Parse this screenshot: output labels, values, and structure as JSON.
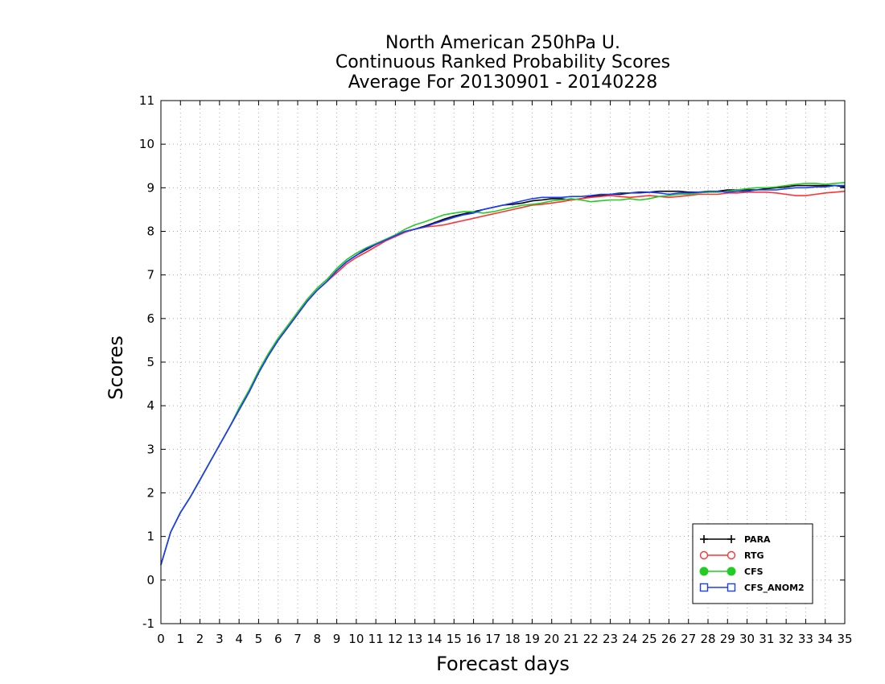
{
  "chart_data": {
    "type": "line",
    "title_lines": [
      "North American 250hPa U.",
      "Continuous Ranked Probability Scores",
      "Average For 20130901 - 20140228"
    ],
    "xlabel": "Forecast days",
    "ylabel": "Scores",
    "xlim": [
      0,
      35
    ],
    "ylim": [
      -1,
      11
    ],
    "xticks": [
      0,
      1,
      2,
      3,
      4,
      5,
      6,
      7,
      8,
      9,
      10,
      11,
      12,
      13,
      14,
      15,
      16,
      17,
      18,
      19,
      20,
      21,
      22,
      23,
      24,
      25,
      26,
      27,
      28,
      29,
      30,
      31,
      32,
      33,
      34,
      35
    ],
    "yticks": [
      -1,
      0,
      1,
      2,
      3,
      4,
      5,
      6,
      7,
      8,
      9,
      10,
      11
    ],
    "grid": true,
    "legend_position": "bottom-right",
    "series": [
      {
        "name": "PARA",
        "color": "#000000",
        "marker": "plus",
        "x": [
          0,
          0.5,
          1,
          1.5,
          2,
          2.5,
          3,
          3.5,
          4,
          4.5,
          5,
          5.5,
          6,
          6.5,
          7,
          7.5,
          8,
          8.5,
          9,
          9.5,
          10,
          10.5,
          11,
          11.5,
          12,
          12.5,
          13,
          13.5,
          14,
          14.5,
          15,
          15.5,
          16,
          16.5,
          17,
          17.5,
          18,
          18.5,
          19,
          19.5,
          20,
          20.5,
          21,
          21.5,
          22,
          22.5,
          23,
          23.5,
          24,
          24.5,
          25,
          25.5,
          26,
          26.5,
          27,
          27.5,
          28,
          28.5,
          29,
          29.5,
          30,
          30.5,
          31,
          31.5,
          32,
          32.5,
          33,
          33.5,
          34,
          34.5,
          35
        ],
        "y": [
          0.35,
          1.1,
          1.55,
          1.9,
          2.3,
          2.7,
          3.1,
          3.5,
          3.9,
          4.3,
          4.75,
          5.15,
          5.5,
          5.8,
          6.1,
          6.4,
          6.65,
          6.85,
          7.1,
          7.3,
          7.45,
          7.58,
          7.7,
          7.8,
          7.9,
          8.0,
          8.05,
          8.12,
          8.2,
          8.28,
          8.35,
          8.4,
          8.45,
          8.5,
          8.55,
          8.6,
          8.62,
          8.65,
          8.7,
          8.72,
          8.75,
          8.75,
          8.72,
          8.75,
          8.8,
          8.82,
          8.85,
          8.85,
          8.88,
          8.9,
          8.9,
          8.92,
          8.92,
          8.92,
          8.9,
          8.9,
          8.9,
          8.92,
          8.95,
          8.95,
          8.95,
          8.95,
          8.98,
          9.0,
          9.02,
          9.05,
          9.05,
          9.05,
          9.05,
          9.05,
          9.02
        ]
      },
      {
        "name": "RTG",
        "color": "#ff3333",
        "marker": "circle-open",
        "x": [
          0,
          0.5,
          1,
          1.5,
          2,
          2.5,
          3,
          3.5,
          4,
          4.5,
          5,
          5.5,
          6,
          6.5,
          7,
          7.5,
          8,
          8.5,
          9,
          9.5,
          10,
          10.5,
          11,
          11.5,
          12,
          12.5,
          13,
          13.5,
          14,
          14.5,
          15,
          15.5,
          16,
          16.5,
          17,
          17.5,
          18,
          18.5,
          19,
          19.5,
          20,
          20.5,
          21,
          21.5,
          22,
          22.5,
          23,
          23.5,
          24,
          24.5,
          25,
          25.5,
          26,
          26.5,
          27,
          27.5,
          28,
          28.5,
          29,
          29.5,
          30,
          30.5,
          31,
          31.5,
          32,
          32.5,
          33,
          33.5,
          34,
          34.5,
          35
        ],
        "y": [
          0.35,
          1.1,
          1.55,
          1.9,
          2.3,
          2.7,
          3.1,
          3.5,
          3.9,
          4.3,
          4.75,
          5.15,
          5.5,
          5.8,
          6.1,
          6.4,
          6.65,
          6.85,
          7.05,
          7.25,
          7.4,
          7.52,
          7.65,
          7.78,
          7.88,
          7.98,
          8.05,
          8.1,
          8.12,
          8.15,
          8.2,
          8.25,
          8.3,
          8.35,
          8.4,
          8.45,
          8.5,
          8.55,
          8.6,
          8.62,
          8.65,
          8.68,
          8.72,
          8.75,
          8.78,
          8.8,
          8.82,
          8.8,
          8.78,
          8.8,
          8.82,
          8.8,
          8.78,
          8.8,
          8.82,
          8.85,
          8.85,
          8.85,
          8.88,
          8.88,
          8.9,
          8.9,
          8.9,
          8.88,
          8.85,
          8.82,
          8.82,
          8.85,
          8.88,
          8.9,
          8.92
        ]
      },
      {
        "name": "CFS",
        "color": "#22cc22",
        "marker": "circle-filled",
        "x": [
          0,
          0.5,
          1,
          1.5,
          2,
          2.5,
          3,
          3.5,
          4,
          4.5,
          5,
          5.5,
          6,
          6.5,
          7,
          7.5,
          8,
          8.5,
          9,
          9.5,
          10,
          10.5,
          11,
          11.5,
          12,
          12.5,
          13,
          13.5,
          14,
          14.5,
          15,
          15.5,
          16,
          16.5,
          17,
          17.5,
          18,
          18.5,
          19,
          19.5,
          20,
          20.5,
          21,
          21.5,
          22,
          22.5,
          23,
          23.5,
          24,
          24.5,
          25,
          25.5,
          26,
          26.5,
          27,
          27.5,
          28,
          28.5,
          29,
          29.5,
          30,
          30.5,
          31,
          31.5,
          32,
          32.5,
          33,
          33.5,
          34,
          34.5,
          35
        ],
        "y": [
          0.35,
          1.1,
          1.55,
          1.9,
          2.3,
          2.7,
          3.1,
          3.5,
          3.95,
          4.35,
          4.8,
          5.2,
          5.55,
          5.85,
          6.15,
          6.45,
          6.7,
          6.9,
          7.15,
          7.35,
          7.5,
          7.62,
          7.72,
          7.82,
          7.92,
          8.05,
          8.15,
          8.22,
          8.3,
          8.38,
          8.42,
          8.45,
          8.45,
          8.42,
          8.45,
          8.5,
          8.55,
          8.6,
          8.62,
          8.65,
          8.7,
          8.72,
          8.75,
          8.72,
          8.68,
          8.7,
          8.72,
          8.72,
          8.75,
          8.72,
          8.75,
          8.8,
          8.82,
          8.85,
          8.85,
          8.88,
          8.9,
          8.9,
          8.92,
          8.95,
          8.98,
          9.0,
          9.0,
          9.02,
          9.05,
          9.08,
          9.1,
          9.1,
          9.08,
          9.1,
          9.12
        ]
      },
      {
        "name": "CFS_ANOM2",
        "color": "#1a3dff",
        "marker": "square-open",
        "x": [
          0,
          0.5,
          1,
          1.5,
          2,
          2.5,
          3,
          3.5,
          4,
          4.5,
          5,
          5.5,
          6,
          6.5,
          7,
          7.5,
          8,
          8.5,
          9,
          9.5,
          10,
          10.5,
          11,
          11.5,
          12,
          12.5,
          13,
          13.5,
          14,
          14.5,
          15,
          15.5,
          16,
          16.5,
          17,
          17.5,
          18,
          18.5,
          19,
          19.5,
          20,
          20.5,
          21,
          21.5,
          22,
          22.5,
          23,
          23.5,
          24,
          24.5,
          25,
          25.5,
          26,
          26.5,
          27,
          27.5,
          28,
          28.5,
          29,
          29.5,
          30,
          30.5,
          31,
          31.5,
          32,
          32.5,
          33,
          33.5,
          34,
          34.5,
          35
        ],
        "y": [
          0.35,
          1.1,
          1.55,
          1.9,
          2.3,
          2.7,
          3.1,
          3.5,
          3.9,
          4.3,
          4.75,
          5.15,
          5.5,
          5.8,
          6.1,
          6.4,
          6.65,
          6.85,
          7.1,
          7.3,
          7.45,
          7.6,
          7.7,
          7.8,
          7.9,
          8.0,
          8.05,
          8.1,
          8.18,
          8.25,
          8.32,
          8.38,
          8.42,
          8.5,
          8.55,
          8.6,
          8.65,
          8.7,
          8.75,
          8.78,
          8.78,
          8.78,
          8.8,
          8.8,
          8.82,
          8.85,
          8.85,
          8.88,
          8.88,
          8.88,
          8.9,
          8.88,
          8.85,
          8.88,
          8.88,
          8.9,
          8.92,
          8.92,
          8.9,
          8.92,
          8.92,
          8.95,
          8.95,
          8.95,
          8.98,
          9.0,
          9.0,
          9.02,
          9.02,
          9.05,
          9.05
        ]
      }
    ]
  }
}
